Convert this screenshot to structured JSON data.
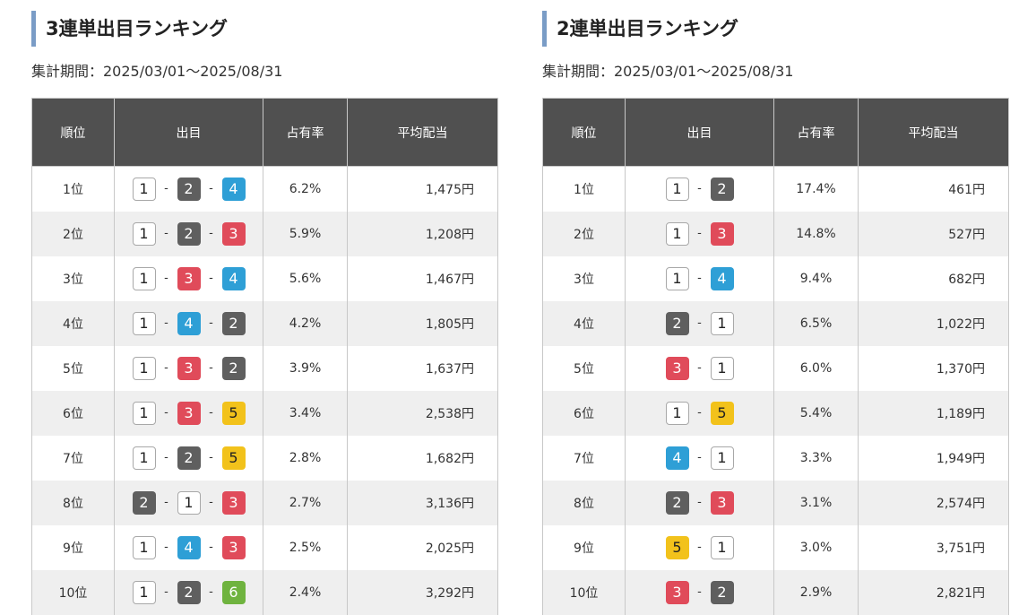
{
  "trifecta": {
    "title": "3連単出目ランキング",
    "period": "集計期間：2025/03/01～2025/08/31",
    "headers": [
      "順位",
      "出目",
      "占有率",
      "平均配当"
    ],
    "rows": [
      {
        "rank": "1位",
        "combo": [
          "1",
          "2",
          "4"
        ],
        "share": "6.2%",
        "payout": "1,475円"
      },
      {
        "rank": "2位",
        "combo": [
          "1",
          "2",
          "3"
        ],
        "share": "5.9%",
        "payout": "1,208円"
      },
      {
        "rank": "3位",
        "combo": [
          "1",
          "3",
          "4"
        ],
        "share": "5.6%",
        "payout": "1,467円"
      },
      {
        "rank": "4位",
        "combo": [
          "1",
          "4",
          "2"
        ],
        "share": "4.2%",
        "payout": "1,805円"
      },
      {
        "rank": "5位",
        "combo": [
          "1",
          "3",
          "2"
        ],
        "share": "3.9%",
        "payout": "1,637円"
      },
      {
        "rank": "6位",
        "combo": [
          "1",
          "3",
          "5"
        ],
        "share": "3.4%",
        "payout": "2,538円"
      },
      {
        "rank": "7位",
        "combo": [
          "1",
          "2",
          "5"
        ],
        "share": "2.8%",
        "payout": "1,682円"
      },
      {
        "rank": "8位",
        "combo": [
          "2",
          "1",
          "3"
        ],
        "share": "2.7%",
        "payout": "3,136円"
      },
      {
        "rank": "9位",
        "combo": [
          "1",
          "4",
          "3"
        ],
        "share": "2.5%",
        "payout": "2,025円"
      },
      {
        "rank": "10位",
        "combo": [
          "1",
          "2",
          "6"
        ],
        "share": "2.4%",
        "payout": "3,292円"
      }
    ]
  },
  "exacta": {
    "title": "2連単出目ランキング",
    "period": "集計期間：2025/03/01～2025/08/31",
    "headers": [
      "順位",
      "出目",
      "占有率",
      "平均配当"
    ],
    "rows": [
      {
        "rank": "1位",
        "combo": [
          "1",
          "2"
        ],
        "share": "17.4%",
        "payout": "461円"
      },
      {
        "rank": "2位",
        "combo": [
          "1",
          "3"
        ],
        "share": "14.8%",
        "payout": "527円"
      },
      {
        "rank": "3位",
        "combo": [
          "1",
          "4"
        ],
        "share": "9.4%",
        "payout": "682円"
      },
      {
        "rank": "4位",
        "combo": [
          "2",
          "1"
        ],
        "share": "6.5%",
        "payout": "1,022円"
      },
      {
        "rank": "5位",
        "combo": [
          "3",
          "1"
        ],
        "share": "6.0%",
        "payout": "1,370円"
      },
      {
        "rank": "6位",
        "combo": [
          "1",
          "5"
        ],
        "share": "5.4%",
        "payout": "1,189円"
      },
      {
        "rank": "7位",
        "combo": [
          "4",
          "1"
        ],
        "share": "3.3%",
        "payout": "1,949円"
      },
      {
        "rank": "8位",
        "combo": [
          "2",
          "3"
        ],
        "share": "3.1%",
        "payout": "2,574円"
      },
      {
        "rank": "9位",
        "combo": [
          "5",
          "1"
        ],
        "share": "3.0%",
        "payout": "3,751円"
      },
      {
        "rank": "10位",
        "combo": [
          "3",
          "2"
        ],
        "share": "2.9%",
        "payout": "2,821円"
      }
    ]
  },
  "separator": "-",
  "boat_colors": {
    "1": "#ffffff",
    "2": "#5f5f5f",
    "3": "#e04b5a",
    "4": "#2e9fd6",
    "5": "#f2c21b",
    "6": "#6fb33f"
  }
}
